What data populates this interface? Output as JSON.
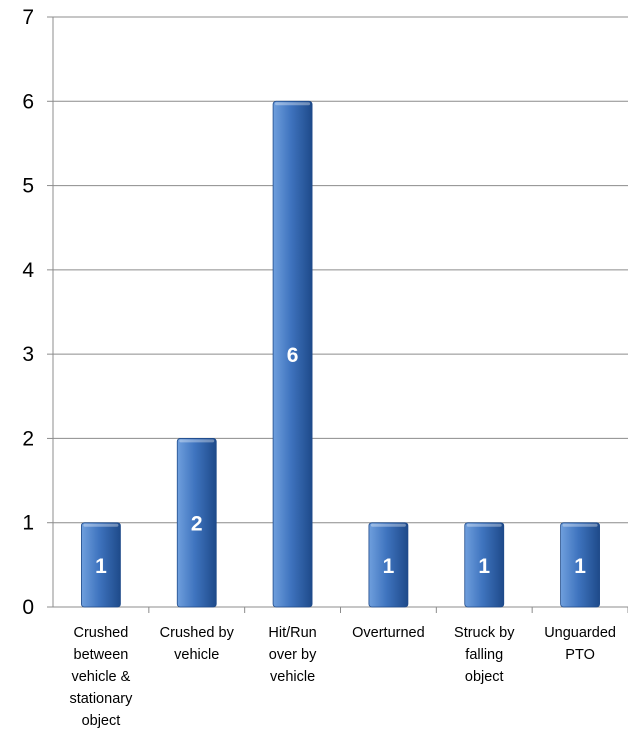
{
  "chart_data": {
    "type": "bar",
    "title": "",
    "xlabel": "",
    "ylabel": "",
    "categories": [
      [
        "Crushed",
        "between",
        "vehicle &",
        "stationary",
        "object"
      ],
      [
        "Crushed by",
        "vehicle"
      ],
      [
        "Hit/Run",
        "over by",
        "vehicle"
      ],
      [
        "Overturned"
      ],
      [
        "Struck by",
        "falling",
        "object"
      ],
      [
        "Unguarded",
        "PTO"
      ]
    ],
    "values": [
      1,
      2,
      6,
      1,
      1,
      1
    ],
    "data_labels": [
      "1",
      "2",
      "6",
      "1",
      "1",
      "1"
    ],
    "ylim": [
      0,
      7
    ],
    "yticks": [
      "0",
      "1",
      "2",
      "3",
      "4",
      "5",
      "6",
      "7"
    ],
    "grid": true,
    "legend": "none",
    "colors": {
      "bar_light": "#6f9fdd",
      "bar_mid": "#3f74bf",
      "bar_dark": "#1e4a8a",
      "grid": "#8c8c8c",
      "axis": "#8c8c8c"
    }
  }
}
